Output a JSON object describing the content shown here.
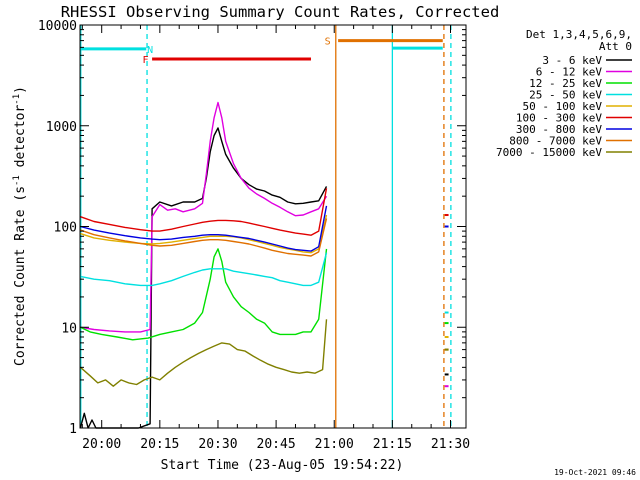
{
  "chart_data": {
    "type": "line",
    "title": "RHESSI Observing Summary Count Rates, Corrected",
    "xlabel": "Start Time (23-Aug-05 19:54:22)",
    "ylabel": "Corrected Count Rate (s",
    "ylabel_sup": "-1",
    "ylabel_mid": " detector",
    "ylabel_sup2": "-1",
    "ylabel_end": ")",
    "y_scale": "log",
    "ylim": [
      1,
      10000
    ],
    "xlim_min": [
      1194.4,
      1294
    ],
    "x_ticks": [
      {
        "m": 1200,
        "label": "20:00"
      },
      {
        "m": 1215,
        "label": "20:15"
      },
      {
        "m": 1230,
        "label": "20:30"
      },
      {
        "m": 1245,
        "label": "20:45"
      },
      {
        "m": 1260,
        "label": "21:00"
      },
      {
        "m": 1275,
        "label": "21:15"
      },
      {
        "m": 1290,
        "label": "21:30"
      }
    ],
    "y_ticks": [
      {
        "v": 1,
        "label": "1"
      },
      {
        "v": 10,
        "label": "10"
      },
      {
        "v": 100,
        "label": "100"
      },
      {
        "v": 1000,
        "label": "1000"
      },
      {
        "v": 10000,
        "label": "10000"
      }
    ],
    "legend": {
      "placement": "right",
      "header_line1": "Det 1,3,4,5,6,9,",
      "header_line2": "Att 0"
    },
    "series": [
      {
        "name": "3 - 6 keV",
        "color": "#000000",
        "points": [
          [
            1194.5,
            1
          ],
          [
            1195.5,
            1.4
          ],
          [
            1196.5,
            0.8
          ],
          [
            1197.5,
            1.2
          ],
          [
            1198.5,
            1
          ],
          [
            1209.5,
            1
          ],
          [
            1212.5,
            1.1
          ],
          [
            1213,
            150
          ],
          [
            1215,
            175
          ],
          [
            1218,
            160
          ],
          [
            1221,
            175
          ],
          [
            1224,
            175
          ],
          [
            1226,
            190
          ],
          [
            1227,
            300
          ],
          [
            1228,
            550
          ],
          [
            1229,
            800
          ],
          [
            1230,
            950
          ],
          [
            1231,
            700
          ],
          [
            1232,
            520
          ],
          [
            1234,
            380
          ],
          [
            1236,
            300
          ],
          [
            1238,
            260
          ],
          [
            1240,
            235
          ],
          [
            1242,
            225
          ],
          [
            1244,
            205
          ],
          [
            1246,
            195
          ],
          [
            1248,
            175
          ],
          [
            1250,
            168
          ],
          [
            1252,
            170
          ],
          [
            1254,
            175
          ],
          [
            1256,
            180
          ],
          [
            1258,
            250
          ]
        ]
      },
      {
        "name": "6 - 12 keV",
        "color": "#e000e0",
        "points": [
          [
            1194.5,
            10
          ],
          [
            1198,
            9.5
          ],
          [
            1202,
            9.2
          ],
          [
            1206,
            9
          ],
          [
            1210,
            9
          ],
          [
            1212.5,
            9.5
          ],
          [
            1213,
            125
          ],
          [
            1215,
            165
          ],
          [
            1217,
            145
          ],
          [
            1219,
            150
          ],
          [
            1221,
            140
          ],
          [
            1224,
            150
          ],
          [
            1226,
            170
          ],
          [
            1227,
            330
          ],
          [
            1228,
            700
          ],
          [
            1229,
            1200
          ],
          [
            1230,
            1700
          ],
          [
            1231,
            1200
          ],
          [
            1232,
            700
          ],
          [
            1234,
            420
          ],
          [
            1236,
            300
          ],
          [
            1238,
            240
          ],
          [
            1240,
            210
          ],
          [
            1242,
            190
          ],
          [
            1244,
            170
          ],
          [
            1246,
            155
          ],
          [
            1248,
            140
          ],
          [
            1250,
            128
          ],
          [
            1252,
            130
          ],
          [
            1254,
            140
          ],
          [
            1256,
            150
          ],
          [
            1258,
            200
          ]
        ]
      },
      {
        "name": "12 - 25 keV",
        "color": "#00e000",
        "points": [
          [
            1194.5,
            10
          ],
          [
            1197,
            9
          ],
          [
            1200,
            8.5
          ],
          [
            1204,
            8
          ],
          [
            1208,
            7.5
          ],
          [
            1212,
            7.8
          ],
          [
            1215,
            8.5
          ],
          [
            1218,
            9
          ],
          [
            1221,
            9.5
          ],
          [
            1224,
            11
          ],
          [
            1226,
            14
          ],
          [
            1228,
            30
          ],
          [
            1229,
            50
          ],
          [
            1230,
            60
          ],
          [
            1231,
            45
          ],
          [
            1232,
            28
          ],
          [
            1234,
            20
          ],
          [
            1236,
            16
          ],
          [
            1238,
            14
          ],
          [
            1240,
            12
          ],
          [
            1242,
            11
          ],
          [
            1244,
            9
          ],
          [
            1246,
            8.5
          ],
          [
            1248,
            8.5
          ],
          [
            1250,
            8.5
          ],
          [
            1252,
            9
          ],
          [
            1254,
            9
          ],
          [
            1256,
            12
          ],
          [
            1258,
            60
          ]
        ]
      },
      {
        "name": "25 - 50 keV",
        "color": "#00e0e0",
        "points": [
          [
            1194.5,
            32
          ],
          [
            1198,
            30
          ],
          [
            1202,
            29
          ],
          [
            1206,
            27
          ],
          [
            1210,
            26
          ],
          [
            1213,
            26
          ],
          [
            1215,
            27
          ],
          [
            1218,
            29
          ],
          [
            1221,
            32
          ],
          [
            1224,
            35
          ],
          [
            1226,
            37
          ],
          [
            1228,
            38
          ],
          [
            1230,
            38
          ],
          [
            1232,
            38
          ],
          [
            1234,
            36
          ],
          [
            1236,
            35
          ],
          [
            1238,
            34
          ],
          [
            1240,
            33
          ],
          [
            1242,
            32
          ],
          [
            1244,
            31
          ],
          [
            1246,
            29
          ],
          [
            1248,
            28
          ],
          [
            1250,
            27
          ],
          [
            1252,
            26
          ],
          [
            1254,
            26
          ],
          [
            1256,
            28
          ],
          [
            1258,
            55
          ]
        ]
      },
      {
        "name": "50 - 100 keV",
        "color": "#e0b000",
        "points": [
          [
            1194.5,
            85
          ],
          [
            1198,
            77
          ],
          [
            1202,
            73
          ],
          [
            1206,
            70
          ],
          [
            1210,
            68
          ],
          [
            1213,
            67
          ],
          [
            1215,
            68
          ],
          [
            1218,
            70
          ],
          [
            1221,
            73
          ],
          [
            1224,
            76
          ],
          [
            1226,
            78
          ],
          [
            1228,
            80
          ],
          [
            1230,
            80
          ],
          [
            1232,
            80
          ],
          [
            1234,
            79
          ],
          [
            1236,
            77
          ],
          [
            1238,
            74
          ],
          [
            1240,
            71
          ],
          [
            1242,
            68
          ],
          [
            1244,
            65
          ],
          [
            1246,
            62
          ],
          [
            1248,
            60
          ],
          [
            1250,
            58
          ],
          [
            1252,
            56
          ],
          [
            1254,
            55
          ],
          [
            1256,
            60
          ],
          [
            1258,
            130
          ]
        ]
      },
      {
        "name": "100 - 300 keV",
        "color": "#e00000",
        "points": [
          [
            1194.5,
            125
          ],
          [
            1198,
            112
          ],
          [
            1202,
            105
          ],
          [
            1206,
            98
          ],
          [
            1210,
            93
          ],
          [
            1213,
            90
          ],
          [
            1215,
            90
          ],
          [
            1218,
            94
          ],
          [
            1221,
            100
          ],
          [
            1224,
            106
          ],
          [
            1226,
            110
          ],
          [
            1228,
            113
          ],
          [
            1230,
            115
          ],
          [
            1232,
            115
          ],
          [
            1234,
            114
          ],
          [
            1236,
            112
          ],
          [
            1238,
            108
          ],
          [
            1240,
            104
          ],
          [
            1242,
            100
          ],
          [
            1244,
            96
          ],
          [
            1246,
            92
          ],
          [
            1248,
            89
          ],
          [
            1250,
            86
          ],
          [
            1252,
            84
          ],
          [
            1254,
            82
          ],
          [
            1256,
            90
          ],
          [
            1258,
            240
          ]
        ]
      },
      {
        "name": "300 - 800 keV",
        "color": "#0000e0",
        "points": [
          [
            1194.5,
            100
          ],
          [
            1198,
            92
          ],
          [
            1202,
            86
          ],
          [
            1206,
            81
          ],
          [
            1210,
            77
          ],
          [
            1213,
            75
          ],
          [
            1215,
            74
          ],
          [
            1218,
            75
          ],
          [
            1221,
            78
          ],
          [
            1224,
            80
          ],
          [
            1226,
            82
          ],
          [
            1228,
            83
          ],
          [
            1230,
            83
          ],
          [
            1232,
            82
          ],
          [
            1234,
            80
          ],
          [
            1236,
            78
          ],
          [
            1238,
            76
          ],
          [
            1240,
            73
          ],
          [
            1242,
            70
          ],
          [
            1244,
            67
          ],
          [
            1246,
            64
          ],
          [
            1248,
            61
          ],
          [
            1250,
            59
          ],
          [
            1252,
            58
          ],
          [
            1254,
            57
          ],
          [
            1256,
            63
          ],
          [
            1258,
            160
          ]
        ]
      },
      {
        "name": "800 - 7000 keV",
        "color": "#e07000",
        "points": [
          [
            1194.5,
            92
          ],
          [
            1198,
            83
          ],
          [
            1202,
            77
          ],
          [
            1206,
            72
          ],
          [
            1210,
            68
          ],
          [
            1213,
            65
          ],
          [
            1215,
            64
          ],
          [
            1218,
            65
          ],
          [
            1221,
            68
          ],
          [
            1224,
            71
          ],
          [
            1226,
            73
          ],
          [
            1228,
            74
          ],
          [
            1230,
            74
          ],
          [
            1232,
            73
          ],
          [
            1234,
            71
          ],
          [
            1236,
            69
          ],
          [
            1238,
            67
          ],
          [
            1240,
            64
          ],
          [
            1242,
            61
          ],
          [
            1244,
            58
          ],
          [
            1246,
            56
          ],
          [
            1248,
            54
          ],
          [
            1250,
            53
          ],
          [
            1252,
            52
          ],
          [
            1254,
            51
          ],
          [
            1256,
            56
          ],
          [
            1258,
            120
          ]
        ]
      },
      {
        "name": "7000 - 15000 keV",
        "color": "#808000",
        "points": [
          [
            1194.5,
            4
          ],
          [
            1197,
            3.3
          ],
          [
            1199,
            2.8
          ],
          [
            1201,
            3
          ],
          [
            1203,
            2.6
          ],
          [
            1205,
            3
          ],
          [
            1207,
            2.8
          ],
          [
            1209,
            2.7
          ],
          [
            1211,
            3
          ],
          [
            1213,
            3.2
          ],
          [
            1215,
            3
          ],
          [
            1217,
            3.5
          ],
          [
            1219,
            4
          ],
          [
            1221,
            4.5
          ],
          [
            1223,
            5
          ],
          [
            1225,
            5.5
          ],
          [
            1227,
            6
          ],
          [
            1229,
            6.5
          ],
          [
            1231,
            7
          ],
          [
            1233,
            6.8
          ],
          [
            1235,
            6
          ],
          [
            1237,
            5.8
          ],
          [
            1239,
            5.2
          ],
          [
            1241,
            4.7
          ],
          [
            1243,
            4.3
          ],
          [
            1245,
            4
          ],
          [
            1247,
            3.8
          ],
          [
            1249,
            3.6
          ],
          [
            1251,
            3.5
          ],
          [
            1253,
            3.6
          ],
          [
            1255,
            3.5
          ],
          [
            1257,
            3.8
          ],
          [
            1258,
            12
          ]
        ]
      }
    ],
    "post_segment_values": [
      {
        "color": "#000000",
        "v": 3.4
      },
      {
        "color": "#e000e0",
        "v": 2.6
      },
      {
        "color": "#00e000",
        "v": 11
      },
      {
        "color": "#00e0e0",
        "v": 14
      },
      {
        "color": "#e0b000",
        "v": 8
      },
      {
        "color": "#e00000",
        "v": 130
      },
      {
        "color": "#0000e0",
        "v": 100
      },
      {
        "color": "#e07000",
        "v": 6
      },
      {
        "color": "#808000",
        "v": 6
      }
    ],
    "post_segment_range": [
      1288.5,
      1289.5
    ],
    "flag_bars": [
      {
        "label": "",
        "color": "#00e0e0",
        "v": 5800,
        "x0": 1194.4,
        "x1": 1211.5
      },
      {
        "label": "N",
        "color": "#00e0e0",
        "label_v": 5800,
        "label_m": 1212.5
      },
      {
        "label": "F",
        "color": "#e00000",
        "v": 4600,
        "x0": 1213,
        "x1": 1254,
        "label_m": 1211.3
      },
      {
        "label": "S",
        "color": "#e07000",
        "v": 7000,
        "x0": 1261,
        "x1": 1288,
        "label_m": 1258.3
      },
      {
        "label": "",
        "color": "#00e0e0",
        "v": 5900,
        "x0": 1275,
        "x1": 1288
      }
    ],
    "vlines": [
      {
        "m": 1194.6,
        "color": "#00e0e0",
        "style": "solid"
      },
      {
        "m": 1211.7,
        "color": "#00e0e0",
        "style": "dashed"
      },
      {
        "m": 1260.4,
        "color": "#e07000",
        "style": "solid"
      },
      {
        "m": 1275.0,
        "color": "#00e0e0",
        "style": "solid"
      },
      {
        "m": 1288.3,
        "color": "#e07000",
        "style": "dashed"
      },
      {
        "m": 1290.1,
        "color": "#00e0e0",
        "style": "dashed"
      }
    ],
    "timestamp": "19-Oct-2021 09:46"
  }
}
